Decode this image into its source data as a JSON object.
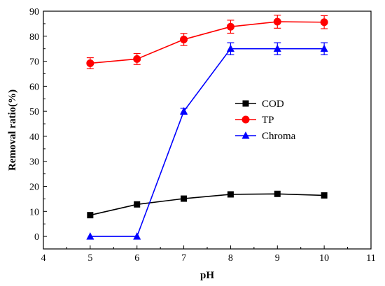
{
  "chart_data": {
    "type": "line",
    "xlabel": "pH",
    "ylabel": "Removal ratio(%)",
    "xlim": [
      4,
      11
    ],
    "ylim": [
      -5,
      90
    ],
    "xticks": [
      4,
      5,
      6,
      7,
      8,
      9,
      10,
      11
    ],
    "yticks": [
      0,
      10,
      20,
      30,
      40,
      50,
      60,
      70,
      80,
      90
    ],
    "grid": false,
    "legend_position": "center-right",
    "x": [
      5,
      6,
      7,
      8,
      9,
      10
    ],
    "series": [
      {
        "name": "COD",
        "color": "#000000",
        "marker": "square",
        "values": [
          8.5,
          12.8,
          15.1,
          16.8,
          17.0,
          16.4
        ],
        "error": [
          0,
          0,
          0,
          0,
          0,
          0
        ]
      },
      {
        "name": "TP",
        "color": "#ff0000",
        "marker": "circle",
        "values": [
          69.2,
          70.9,
          78.7,
          83.8,
          85.8,
          85.6
        ],
        "error": [
          2.2,
          2.2,
          2.4,
          2.6,
          2.6,
          2.6
        ]
      },
      {
        "name": "Chroma",
        "color": "#0000ff",
        "marker": "triangle",
        "values": [
          0,
          0,
          50.0,
          75.0,
          75.0,
          75.0
        ],
        "error": [
          0,
          0,
          1.2,
          2.4,
          2.4,
          2.4
        ]
      }
    ]
  }
}
